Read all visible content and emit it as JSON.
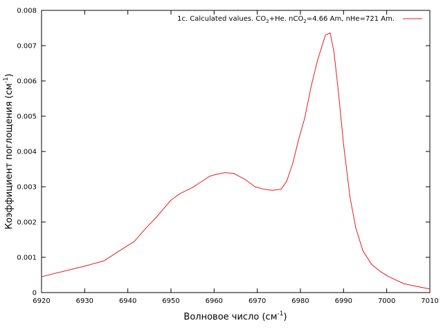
{
  "chart_data": {
    "type": "line",
    "title": "",
    "xlabel": "Волновое число (см",
    "xlabel_sup": "-1",
    "xlabel_suffix": ")",
    "ylabel": "Коэффициент поглощения (см",
    "ylabel_sup": "-1",
    "ylabel_suffix": ")",
    "xlim": [
      6920,
      7010
    ],
    "ylim": [
      0,
      0.008
    ],
    "xticks": [
      6920,
      6930,
      6940,
      6950,
      6960,
      6970,
      6980,
      6990,
      7000,
      7010
    ],
    "yticks": [
      0,
      0.001,
      0.002,
      0.003,
      0.004,
      0.005,
      0.006,
      0.007,
      0.008
    ],
    "ytick_labels": [
      "0",
      "0.001",
      "0.002",
      "0.003",
      "0.004",
      "0.005",
      "0.006",
      "0.007",
      "0.008"
    ],
    "grid": false,
    "legend_position": "top-right",
    "legend_parts": [
      "1c. Calculated values. CO",
      "2",
      "+He. nCO",
      "2",
      "=4.66 Am, nHe=721 Am."
    ],
    "series": [
      {
        "color": "#e41a1c",
        "x": [
          6920,
          6925,
          6930,
          6934.5,
          6938,
          6941.5,
          6944,
          6946.5,
          6949,
          6950,
          6952,
          6955,
          6957,
          6959,
          6960.5,
          6962.5,
          6964.5,
          6967,
          6969.5,
          6971.5,
          6973.5,
          6975.5,
          6976.8,
          6978.2,
          6979.5,
          6981,
          6982.5,
          6984,
          6985.8,
          6986.9,
          6987.8,
          6988.8,
          6990,
          6991.5,
          6992.8,
          6994.5,
          6996.5,
          6998.5,
          7000.5,
          7004,
          7010
        ],
        "y": [
          0.00045,
          0.0006,
          0.00075,
          0.0009,
          0.00118,
          0.00145,
          0.0018,
          0.00212,
          0.00248,
          0.00262,
          0.0028,
          0.00298,
          0.00314,
          0.0033,
          0.00335,
          0.0034,
          0.00338,
          0.00322,
          0.003,
          0.00293,
          0.0029,
          0.00293,
          0.00315,
          0.00365,
          0.0043,
          0.00495,
          0.00585,
          0.0066,
          0.0073,
          0.00736,
          0.0068,
          0.0057,
          0.0042,
          0.0027,
          0.00185,
          0.00118,
          0.0008,
          0.0006,
          0.00045,
          0.00025,
          0.0001
        ]
      }
    ]
  }
}
